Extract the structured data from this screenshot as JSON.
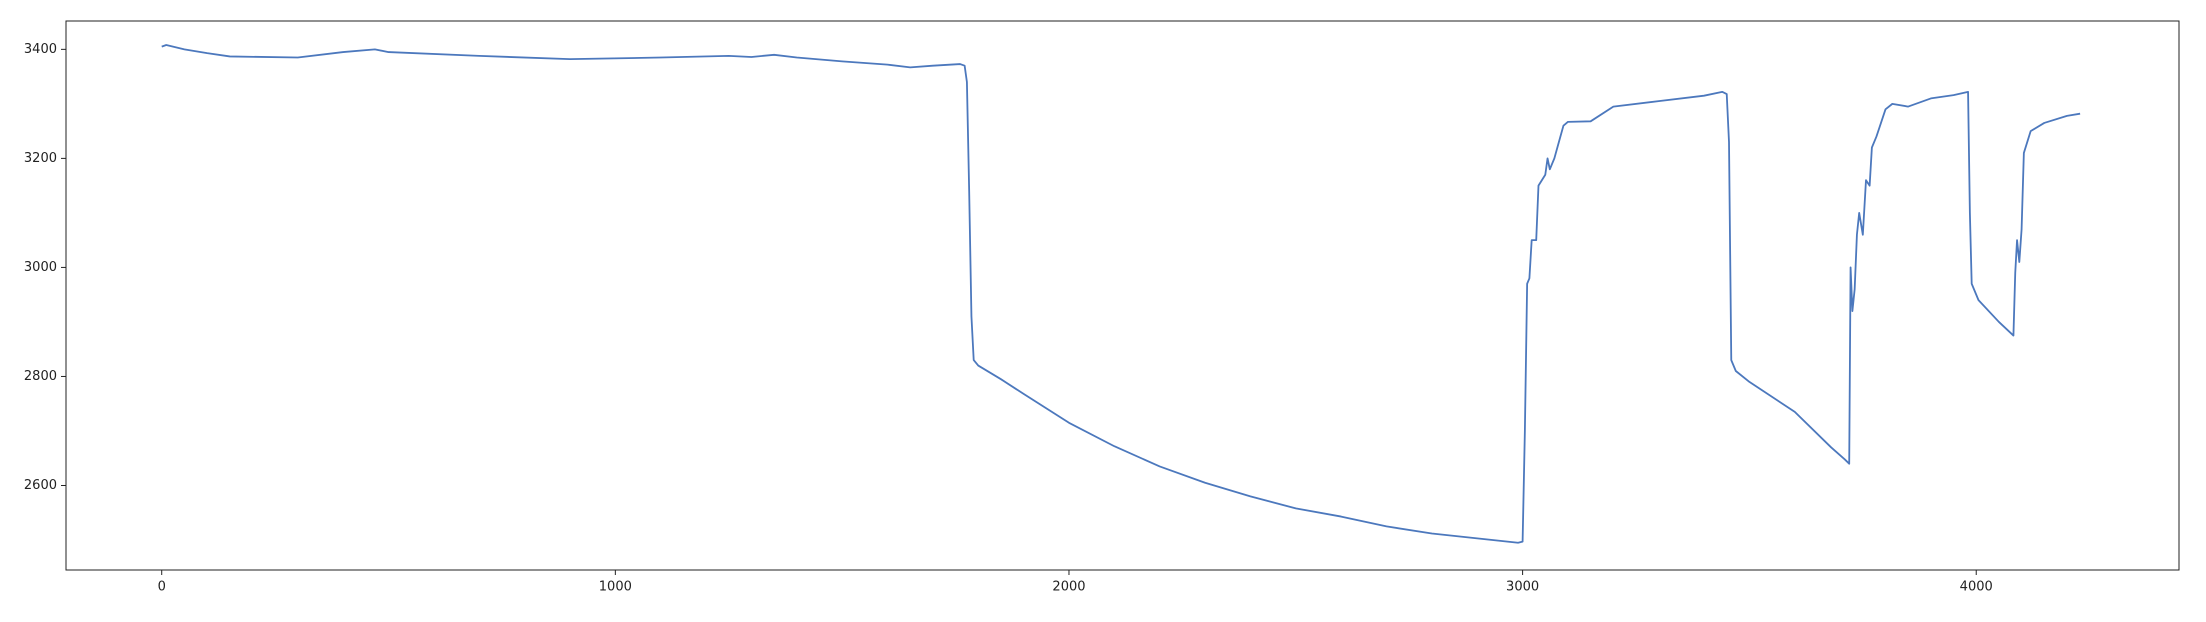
{
  "chart_data": {
    "type": "line",
    "x": [
      0,
      10,
      50,
      100,
      150,
      300,
      400,
      470,
      500,
      700,
      900,
      1100,
      1250,
      1300,
      1350,
      1400,
      1500,
      1600,
      1650,
      1700,
      1760,
      1770,
      1775,
      1780,
      1785,
      1790,
      1800,
      1850,
      1900,
      2000,
      2100,
      2200,
      2300,
      2400,
      2500,
      2600,
      2700,
      2800,
      2900,
      2990,
      3000,
      3005,
      3010,
      3015,
      3020,
      3030,
      3035,
      3050,
      3055,
      3060,
      3070,
      3080,
      3090,
      3100,
      3150,
      3200,
      3300,
      3400,
      3440,
      3450,
      3455,
      3460,
      3470,
      3500,
      3600,
      3680,
      3710,
      3720,
      3723,
      3727,
      3732,
      3737,
      3742,
      3750,
      3757,
      3765,
      3770,
      3780,
      3800,
      3815,
      3850,
      3900,
      3950,
      3982,
      3986,
      3990,
      4005,
      4050,
      4082,
      4086,
      4090,
      4095,
      4100,
      4105,
      4120,
      4150,
      4200,
      4229
    ],
    "series": [
      {
        "color": "#4c78bd",
        "values": [
          3405,
          3408,
          3400,
          3393,
          3387,
          3385,
          3395,
          3400,
          3395,
          3388,
          3382,
          3385,
          3388,
          3386,
          3390,
          3385,
          3378,
          3372,
          3367,
          3370,
          3373,
          3370,
          3340,
          3140,
          2910,
          2830,
          2820,
          2795,
          2768,
          2715,
          2672,
          2635,
          2605,
          2580,
          2558,
          2543,
          2525,
          2512,
          2503,
          2495,
          2497,
          2700,
          2970,
          2980,
          3050,
          3050,
          3150,
          3170,
          3200,
          3180,
          3200,
          3230,
          3260,
          3267,
          3268,
          3295,
          3305,
          3315,
          3322,
          3318,
          3230,
          2830,
          2810,
          2790,
          2735,
          2670,
          2648,
          2640,
          3000,
          2920,
          2960,
          3060,
          3100,
          3060,
          3160,
          3150,
          3220,
          3240,
          3290,
          3300,
          3295,
          3310,
          3316,
          3322,
          3100,
          2970,
          2940,
          2900,
          2875,
          2990,
          3050,
          3010,
          3070,
          3210,
          3250,
          3265,
          3278,
          3282
        ]
      }
    ],
    "xlim": [
      -211,
      4447
    ],
    "xticks": [
      0,
      1000,
      2000,
      3000,
      4000
    ],
    "ylim": [
      2445,
      3452
    ],
    "yticks": [
      2600,
      2800,
      3000,
      3200,
      3400
    ]
  }
}
